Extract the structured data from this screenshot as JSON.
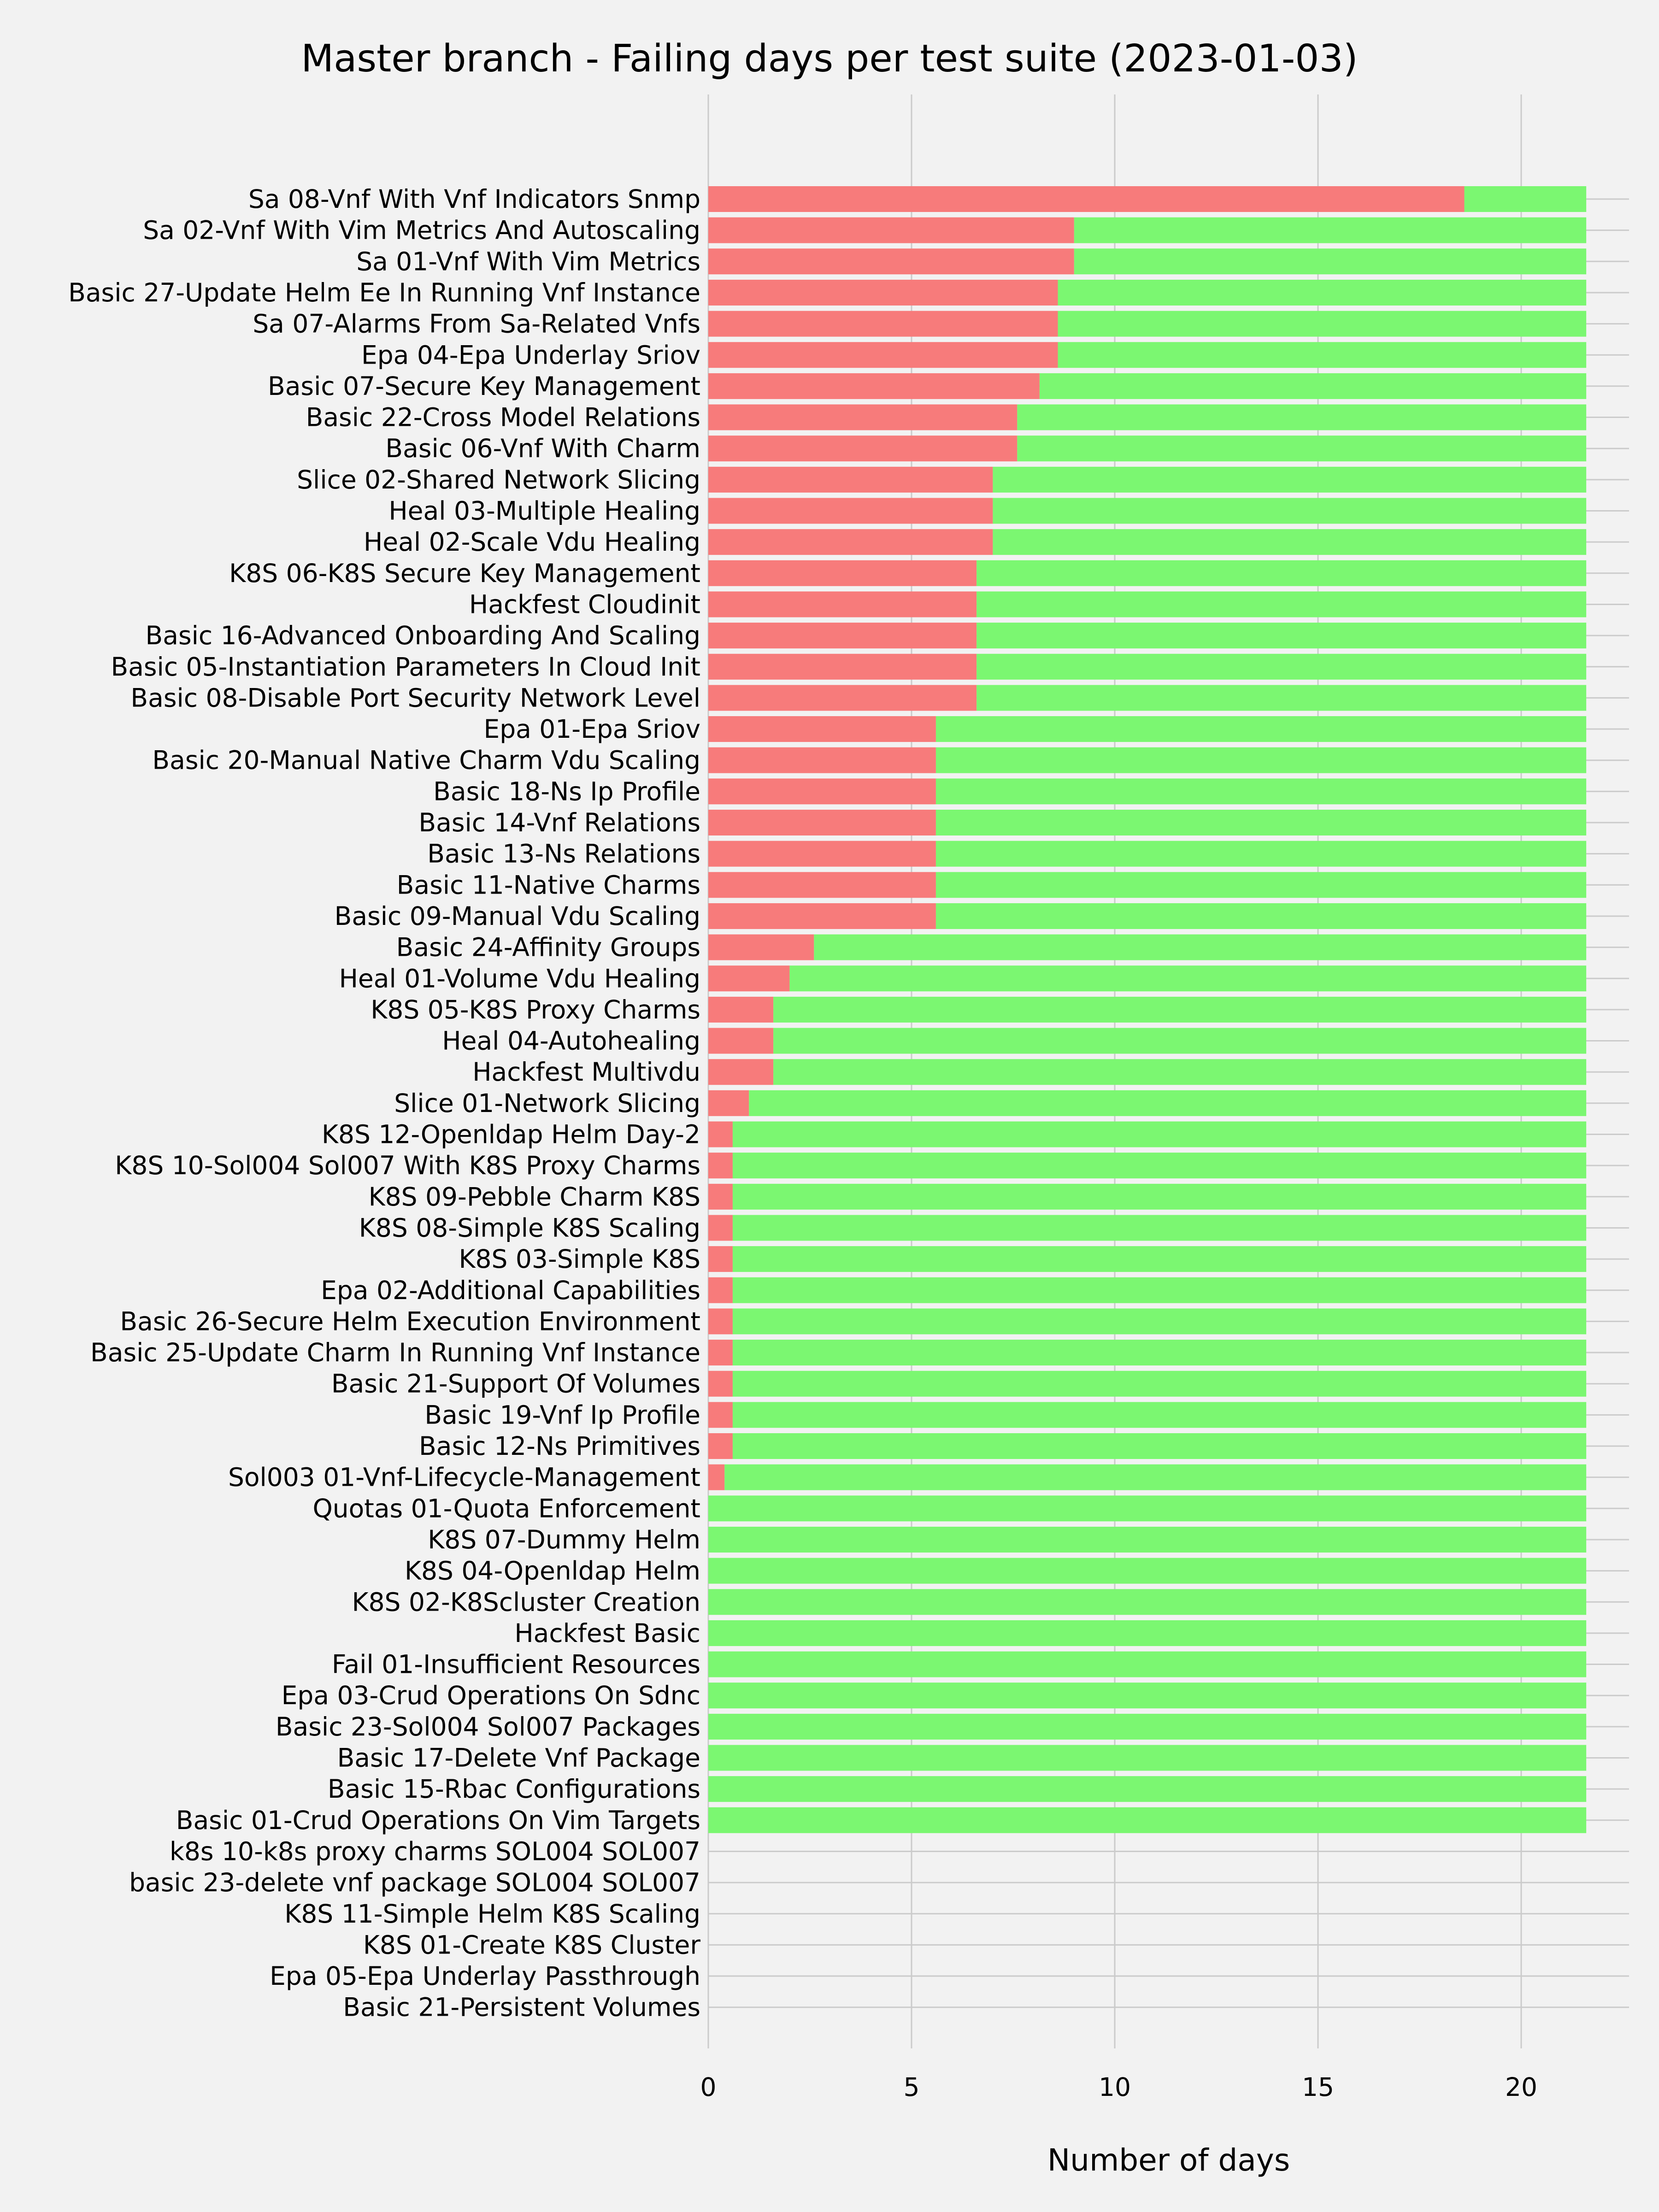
{
  "chart_data": {
    "type": "bar",
    "orientation": "horizontal",
    "stacked": true,
    "title": "Master branch - Failing days per test suite (2023-01-03)",
    "xlabel": "Number of days",
    "ylabel": "",
    "xlim": [
      0,
      22.6
    ],
    "xticks": [
      0,
      5,
      10,
      15,
      20
    ],
    "grid": true,
    "legend": "none",
    "categories": [
      "Sa 08-Vnf With Vnf Indicators Snmp",
      "Sa 02-Vnf With Vim Metrics And Autoscaling",
      "Sa 01-Vnf With Vim Metrics",
      "Basic 27-Update Helm Ee In Running Vnf Instance",
      "Sa 07-Alarms From Sa-Related Vnfs",
      "Epa 04-Epa Underlay Sriov",
      "Basic 07-Secure Key Management",
      "Basic 22-Cross Model Relations",
      "Basic 06-Vnf With Charm",
      "Slice 02-Shared Network Slicing",
      "Heal 03-Multiple Healing",
      "Heal 02-Scale Vdu Healing",
      "K8S 06-K8S Secure Key Management",
      "Hackfest Cloudinit",
      "Basic 16-Advanced Onboarding And Scaling",
      "Basic 05-Instantiation Parameters In Cloud Init",
      "Basic 08-Disable Port Security Network Level",
      "Epa 01-Epa Sriov",
      "Basic 20-Manual Native Charm Vdu Scaling",
      "Basic 18-Ns Ip Profile",
      "Basic 14-Vnf Relations",
      "Basic 13-Ns Relations",
      "Basic 11-Native Charms",
      "Basic 09-Manual Vdu Scaling",
      "Basic 24-Affinity Groups",
      "Heal 01-Volume Vdu Healing",
      "K8S 05-K8S Proxy Charms",
      "Heal 04-Autohealing",
      "Hackfest Multivdu",
      "Slice 01-Network Slicing",
      "K8S 12-Openldap Helm Day-2",
      "K8S 10-Sol004 Sol007 With K8S Proxy Charms",
      "K8S 09-Pebble Charm K8S",
      "K8S 08-Simple K8S Scaling",
      "K8S 03-Simple K8S",
      "Epa 02-Additional Capabilities",
      "Basic 26-Secure Helm Execution Environment",
      "Basic 25-Update Charm In Running Vnf Instance",
      "Basic 21-Support Of Volumes",
      "Basic 19-Vnf Ip Profile",
      "Basic 12-Ns Primitives",
      "Sol003 01-Vnf-Lifecycle-Management",
      "Quotas 01-Quota Enforcement",
      "K8S 07-Dummy Helm",
      "K8S 04-Openldap Helm",
      "K8S 02-K8Scluster Creation",
      "Hackfest Basic",
      "Fail 01-Insufficient Resources",
      "Epa 03-Crud Operations On Sdnc",
      "Basic 23-Sol004 Sol007 Packages",
      "Basic 17-Delete Vnf Package",
      "Basic 15-Rbac Configurations",
      "Basic 01-Crud Operations On Vim Targets",
      "k8s 10-k8s proxy charms SOL004 SOL007",
      "basic 23-delete vnf package SOL004 SOL007",
      "K8S 11-Simple Helm K8S Scaling",
      "K8S 01-Create K8S Cluster",
      "Epa 05-Epa Underlay Passthrough",
      "Basic 21-Persistent Volumes"
    ],
    "series": [
      {
        "color": "#f77b7b",
        "values": [
          18.6,
          9.0,
          9.0,
          8.6,
          8.6,
          8.6,
          8.15,
          7.6,
          7.6,
          7.0,
          7.0,
          7.0,
          6.6,
          6.6,
          6.6,
          6.6,
          6.6,
          5.6,
          5.6,
          5.6,
          5.6,
          5.6,
          5.6,
          5.6,
          2.6,
          2.0,
          1.6,
          1.6,
          1.6,
          1.0,
          0.6,
          0.6,
          0.6,
          0.6,
          0.6,
          0.6,
          0.6,
          0.6,
          0.6,
          0.6,
          0.6,
          0.4,
          0,
          0,
          0,
          0,
          0,
          0,
          0,
          0,
          0,
          0,
          0,
          0,
          0,
          0,
          0,
          0,
          0
        ]
      },
      {
        "color": "#7bf771",
        "values": [
          3.0,
          12.6,
          12.6,
          13.0,
          13.0,
          13.0,
          13.45,
          14.0,
          14.0,
          14.6,
          14.6,
          14.6,
          15.0,
          15.0,
          15.0,
          15.0,
          15.0,
          16.0,
          16.0,
          16.0,
          16.0,
          16.0,
          16.0,
          16.0,
          19.0,
          19.6,
          20.0,
          20.0,
          20.0,
          20.6,
          21.0,
          21.0,
          21.0,
          21.0,
          21.0,
          21.0,
          21.0,
          21.0,
          21.0,
          21.0,
          21.0,
          21.2,
          21.6,
          21.6,
          21.6,
          21.6,
          21.6,
          21.6,
          21.6,
          21.6,
          21.6,
          21.6,
          21.6,
          0,
          0,
          0,
          0,
          0,
          0
        ]
      }
    ]
  }
}
